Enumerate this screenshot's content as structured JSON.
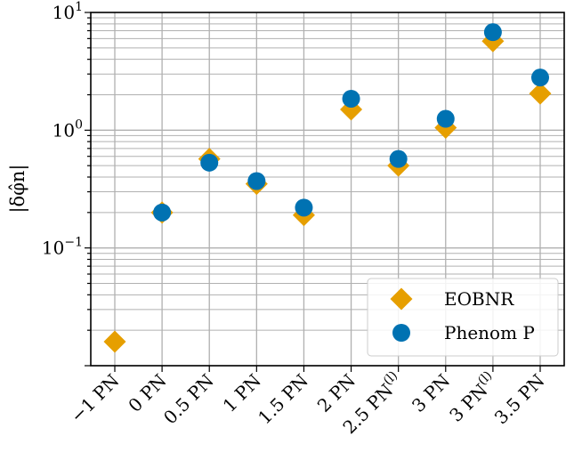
{
  "chart_data": {
    "type": "scatter",
    "categories": [
      "−1 PN",
      "0 PN",
      "0.5 PN",
      "1 PN",
      "1.5 PN",
      "2 PN",
      "2.5 PN(l)",
      "3 PN",
      "3 PN(l)",
      "3.5 PN"
    ],
    "ylabel": "|δφ̂n|",
    "yscale": "log",
    "ylim": [
      0.01,
      10
    ],
    "yticks": [
      {
        "value": 0.1,
        "base": "10",
        "exp": "−1"
      },
      {
        "value": 1,
        "base": "10",
        "exp": "0"
      },
      {
        "value": 10,
        "base": "10",
        "exp": "1"
      }
    ],
    "grid": true,
    "legend_position": "bottom-right",
    "series": [
      {
        "name": "EOBNR",
        "marker": "diamond",
        "color": "#E69F00",
        "values": [
          0.016,
          0.2,
          0.57,
          0.35,
          0.19,
          1.5,
          0.5,
          1.05,
          5.7,
          2.05
        ]
      },
      {
        "name": "Phenom P",
        "marker": "circle",
        "color": "#0072B2",
        "values": [
          null,
          0.2,
          0.53,
          0.37,
          0.22,
          1.85,
          0.57,
          1.25,
          6.8,
          2.8
        ]
      }
    ]
  }
}
